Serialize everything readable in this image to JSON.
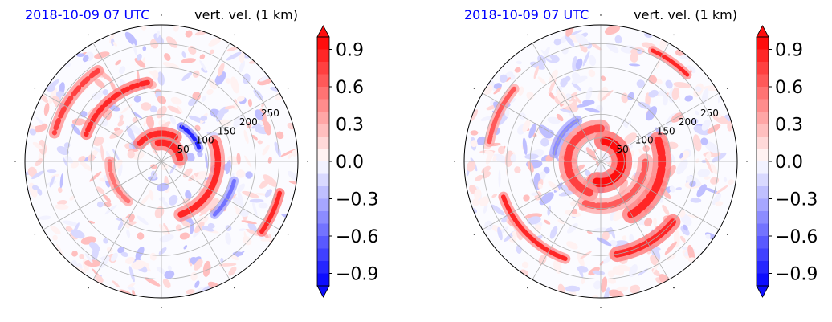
{
  "colors": {
    "title_left": "#0000ff",
    "title_right": "#000000",
    "positive": "#ff0000",
    "negative": "#0000ff",
    "grid": "#b0b0b0"
  },
  "chart_data": [
    {
      "type": "heatmap",
      "projection": "polar",
      "title_left": "2018-10-09 07 UTC",
      "title_right": "vert. vel. (1 km)",
      "radial_ticks": [
        "50",
        "100",
        "150",
        "200",
        "250"
      ],
      "r_max": 290,
      "angular_gridlines_deg": [
        0,
        30,
        60,
        90,
        120,
        150,
        180,
        210,
        240,
        270,
        300,
        330
      ],
      "colorbar": {
        "ticks": [
          "0.9",
          "0.6",
          "0.3",
          "0.0",
          "−0.3",
          "−0.6",
          "−0.9"
        ],
        "vmin": -1.0,
        "vmax": 1.0,
        "levels": 20,
        "extend": "both",
        "cmap": "bwr"
      },
      "features": [
        {
          "type": "band",
          "r": 40,
          "t0": 10,
          "t1": 100,
          "value": 0.9,
          "width": 12
        },
        {
          "type": "band",
          "r": 60,
          "t0": 60,
          "t1": 140,
          "value": 0.9,
          "width": 10
        },
        {
          "type": "band",
          "r": 85,
          "t0": 20,
          "t1": 60,
          "value": -0.8,
          "width": 7
        },
        {
          "type": "band",
          "r": 120,
          "t0": -70,
          "t1": 20,
          "value": 0.8,
          "width": 11
        },
        {
          "type": "band",
          "r": 170,
          "t0": 100,
          "t1": 160,
          "value": 0.9,
          "width": 9
        },
        {
          "type": "band",
          "r": 235,
          "t0": 125,
          "t1": 165,
          "value": 0.7,
          "width": 9
        },
        {
          "type": "band",
          "r": 160,
          "t0": -45,
          "t1": -15,
          "value": -0.6,
          "width": 7
        },
        {
          "type": "band",
          "r": 260,
          "t0": -35,
          "t1": -15,
          "value": 0.9,
          "width": 8
        },
        {
          "type": "band",
          "r": 110,
          "t0": 180,
          "t1": 230,
          "value": 0.5,
          "width": 8
        }
      ]
    },
    {
      "type": "heatmap",
      "projection": "polar",
      "title_left": "2018-10-09 07 UTC",
      "title_right": "vert. vel. (1 km)",
      "radial_ticks": [
        "50",
        "100",
        "150",
        "200",
        "250"
      ],
      "r_max": 290,
      "angular_gridlines_deg": [
        0,
        30,
        60,
        90,
        120,
        150,
        180,
        210,
        240,
        270,
        300,
        330
      ],
      "colorbar": {
        "ticks": [
          "0.9",
          "0.6",
          "0.3",
          "0.0",
          "−0.3",
          "−0.6",
          "−0.9"
        ],
        "vmin": -1.0,
        "vmax": 1.0,
        "levels": 20,
        "extend": "both",
        "cmap": "bwr"
      },
      "features": [
        {
          "type": "band",
          "r": 45,
          "t0": -100,
          "t1": 80,
          "value": 1.0,
          "width": 16
        },
        {
          "type": "band",
          "r": 70,
          "t0": 90,
          "t1": 250,
          "value": 0.7,
          "width": 14
        },
        {
          "type": "band",
          "r": 95,
          "t0": 250,
          "t1": 360,
          "value": 0.6,
          "width": 12
        },
        {
          "type": "band",
          "r": 130,
          "t0": -60,
          "t1": 20,
          "value": 0.9,
          "width": 14
        },
        {
          "type": "band",
          "r": 200,
          "t0": -80,
          "t1": -40,
          "value": 0.9,
          "width": 12
        },
        {
          "type": "band",
          "r": 220,
          "t0": 200,
          "t1": 250,
          "value": 0.8,
          "width": 8
        },
        {
          "type": "band",
          "r": 240,
          "t0": 140,
          "t1": 170,
          "value": 0.6,
          "width": 8
        },
        {
          "type": "band",
          "r": 100,
          "t0": 120,
          "t1": 170,
          "value": -0.5,
          "width": 8
        },
        {
          "type": "band",
          "r": 260,
          "t0": 45,
          "t1": 65,
          "value": 0.8,
          "width": 7
        }
      ]
    }
  ]
}
